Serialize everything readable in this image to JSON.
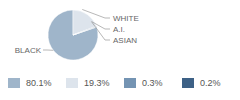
{
  "chart_data": {
    "type": "pie",
    "categories": [
      "BLACK",
      "WHITE",
      "A.I.",
      "ASIAN"
    ],
    "values": [
      80.1,
      19.3,
      0.3,
      0.2
    ],
    "value_labels": [
      "80.1%",
      "19.3%",
      "0.3%",
      "0.2%"
    ],
    "colors": [
      "#9fb5ca",
      "#dde4ec",
      "#7494b3",
      "#3d6186"
    ],
    "legend": "bottom"
  }
}
